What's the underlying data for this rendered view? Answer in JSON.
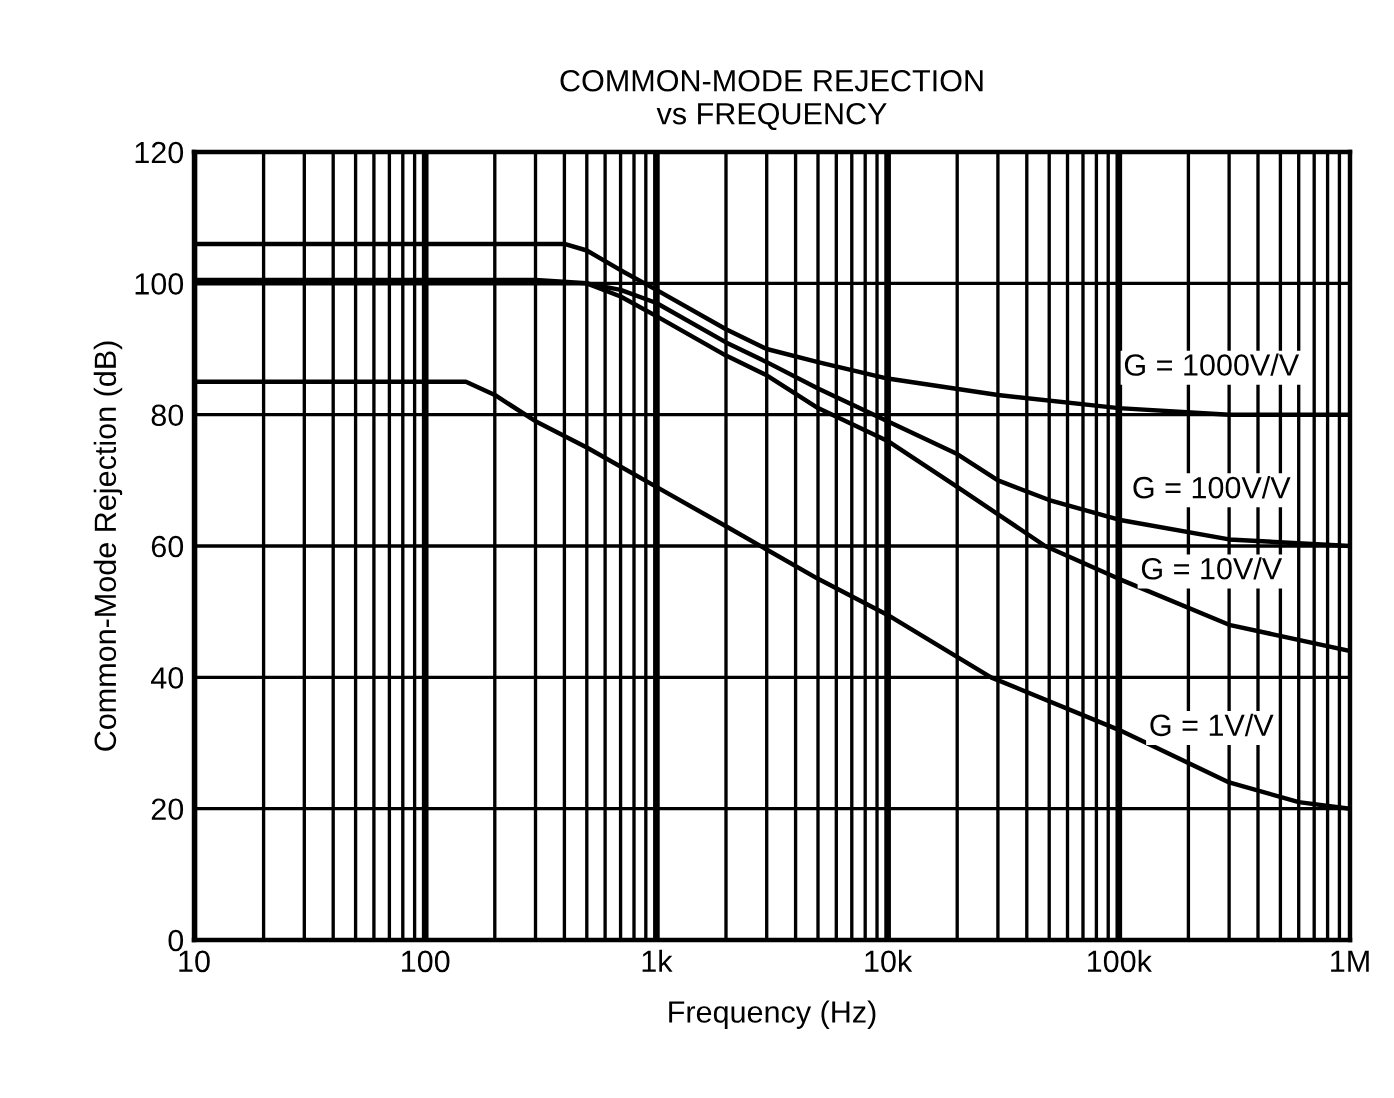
{
  "chart_data": {
    "type": "line",
    "title": "COMMON-MODE REJECTION\nvs FREQUENCY",
    "xlabel": "Frequency (Hz)",
    "ylabel": "Common-Mode Rejection (dB)",
    "log": "x",
    "grid": true,
    "marker": "none",
    "line_style": "solid",
    "xlim": [
      10,
      1000000
    ],
    "xticks": [
      10,
      100,
      {
        "value": 1000,
        "label": "1k"
      },
      {
        "value": 10000,
        "label": "10k"
      },
      {
        "value": 100000,
        "label": "100k"
      },
      {
        "value": 1000000,
        "label": "1M"
      }
    ],
    "ylim": [
      0,
      120
    ],
    "yticks": [
      0,
      20,
      40,
      60,
      80,
      100,
      120
    ],
    "series": [
      {
        "name": "G = 1000V/V",
        "color": "#000000",
        "x": [
          10,
          200,
          400,
          500,
          700,
          1000,
          2000,
          3000,
          5000,
          10000,
          30000,
          100000,
          300000,
          1000000
        ],
        "values": [
          106,
          106,
          106,
          105,
          102,
          99,
          93,
          90,
          88,
          85.5,
          83,
          81,
          80,
          80
        ]
      },
      {
        "name": "G = 100V/V",
        "color": "#000000",
        "x": [
          10,
          300,
          500,
          700,
          1000,
          2000,
          3000,
          5000,
          10000,
          20000,
          30000,
          50000,
          100000,
          300000,
          1000000
        ],
        "values": [
          100,
          100,
          100,
          99,
          97,
          91,
          88,
          84,
          79,
          74,
          70,
          67,
          64,
          61,
          60
        ]
      },
      {
        "name": "G = 10V/V",
        "color": "#000000",
        "x": [
          10,
          300,
          500,
          700,
          1000,
          2000,
          3000,
          5000,
          10000,
          20000,
          48000,
          100000,
          300000,
          1000000
        ],
        "values": [
          100.5,
          100.5,
          100,
          98,
          95,
          89,
          86,
          81,
          76,
          69,
          60,
          55,
          48,
          44
        ]
      },
      {
        "name": "G = 1V/V",
        "color": "#000000",
        "x": [
          10,
          100,
          150,
          200,
          300,
          500,
          1000,
          2000,
          5000,
          10000,
          28000,
          100000,
          300000,
          600000,
          1000000
        ],
        "values": [
          85,
          85,
          85,
          83,
          79,
          75,
          69,
          63,
          55,
          49.5,
          40,
          32,
          24,
          21,
          20
        ]
      }
    ]
  }
}
